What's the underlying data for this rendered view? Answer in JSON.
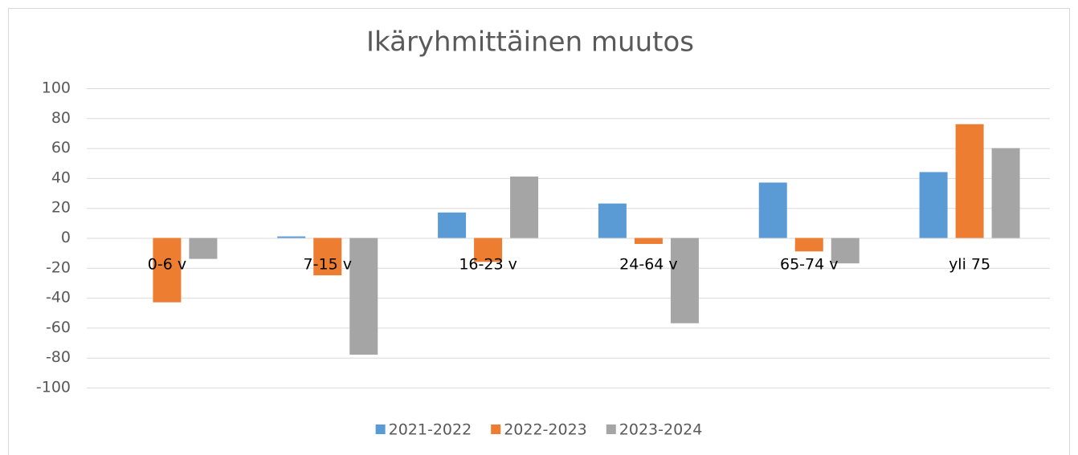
{
  "chart_data": {
    "type": "bar",
    "title": "Ikäryhmittäinen muutos",
    "categories": [
      "0-6 v",
      "7-15 v",
      "16-23 v",
      "24-64 v",
      "65-74 v",
      "yli 75"
    ],
    "series": [
      {
        "name": "2021-2022",
        "color": "#5b9bd5",
        "values": [
          0,
          1,
          17,
          23,
          37,
          44
        ]
      },
      {
        "name": "2022-2023",
        "color": "#ed7d31",
        "values": [
          -43,
          -25,
          -16,
          -4,
          -9,
          76
        ]
      },
      {
        "name": "2023-2024",
        "color": "#a5a5a5",
        "values": [
          -14,
          -78,
          41,
          -57,
          -17,
          60
        ]
      }
    ],
    "ylim": [
      -100,
      100
    ],
    "yticks": [
      -100,
      -80,
      -60,
      -40,
      -20,
      0,
      20,
      40,
      60,
      80,
      100
    ],
    "grid": true,
    "legend": "bottom"
  }
}
